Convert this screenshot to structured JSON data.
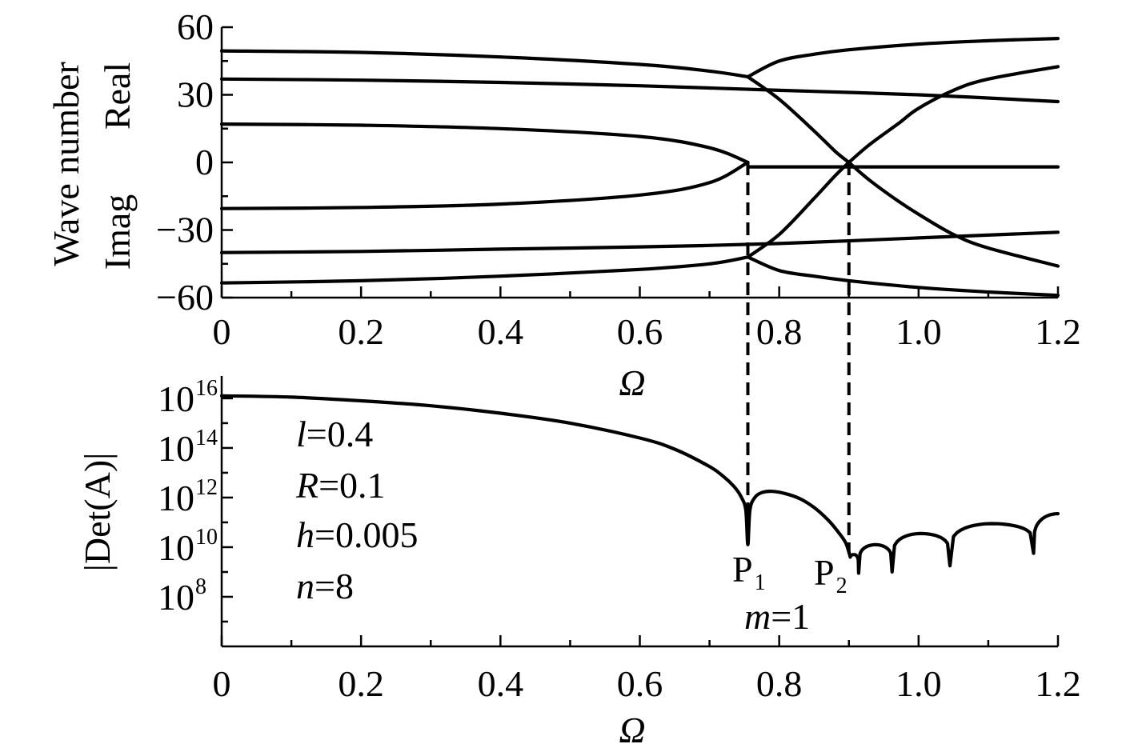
{
  "chart_data": [
    {
      "type": "line",
      "xlabel": "Ω",
      "ylabel": "Wave number",
      "ylabel_upper": "Real",
      "ylabel_lower": "Imag",
      "xlim": [
        0,
        1.2
      ],
      "ylim": [
        -60,
        60
      ],
      "x_ticks": [
        0,
        0.2,
        0.4,
        0.6,
        0.8,
        1.0,
        1.2
      ],
      "x_tick_labels": [
        "0",
        "0.2",
        "0.4",
        "0.6",
        "0.8",
        "1.0",
        "1.2"
      ],
      "y_ticks": [
        60,
        30,
        0,
        -30,
        -60
      ],
      "y_tick_labels": [
        "60",
        "30",
        "0",
        "−30",
        "−60"
      ],
      "series": [
        {
          "x": [
            0,
            0.2,
            0.4,
            0.6,
            0.7,
            0.755
          ],
          "y": [
            49.5,
            48.8,
            46.8,
            43.5,
            40.5,
            38
          ]
        },
        {
          "x": [
            0.755,
            0.8,
            0.85,
            0.88,
            0.9
          ],
          "y": [
            38,
            28,
            14,
            5,
            0
          ]
        },
        {
          "x": [
            0.755,
            0.8,
            0.85,
            0.9,
            1.0,
            1.1,
            1.2
          ],
          "y": [
            38,
            45,
            48,
            50,
            52.5,
            54,
            55
          ]
        },
        {
          "x": [
            0,
            0.2,
            0.4,
            0.6,
            0.8,
            1.0,
            1.2
          ],
          "y": [
            37,
            36.5,
            35.5,
            34,
            32,
            30,
            27
          ]
        },
        {
          "x": [
            0,
            0.2,
            0.4,
            0.6,
            0.7,
            0.755
          ],
          "y": [
            17,
            16.5,
            15,
            11.5,
            6.5,
            0
          ]
        },
        {
          "x": [
            0,
            0.2,
            0.4,
            0.6,
            0.7,
            0.755
          ],
          "y": [
            -20.5,
            -20,
            -18.5,
            -14.5,
            -9,
            0
          ]
        },
        {
          "x": [
            0.755,
            1.2
          ],
          "y": [
            -2,
            -2
          ]
        },
        {
          "x": [
            0.9,
            0.93,
            0.97,
            1.0,
            1.05,
            1.1,
            1.2
          ],
          "y": [
            0,
            8,
            17,
            24,
            32,
            37,
            42.5
          ]
        },
        {
          "x": [
            0.9,
            0.93,
            0.97,
            1.0,
            1.05,
            1.1,
            1.2
          ],
          "y": [
            0,
            -8,
            -17,
            -23,
            -32,
            -38,
            -46
          ]
        },
        {
          "x": [
            0,
            0.2,
            0.4,
            0.6,
            0.8,
            1.0,
            1.2
          ],
          "y": [
            -40,
            -39.5,
            -38.5,
            -37.5,
            -36,
            -33.5,
            -31
          ]
        },
        {
          "x": [
            0.755,
            0.8,
            0.85,
            0.88,
            0.9
          ],
          "y": [
            -42,
            -32,
            -16,
            -6,
            0
          ]
        },
        {
          "x": [
            0,
            0.2,
            0.4,
            0.6,
            0.7,
            0.755
          ],
          "y": [
            -53.5,
            -52.5,
            -50.5,
            -47.5,
            -45,
            -42
          ]
        },
        {
          "x": [
            0.755,
            0.8,
            0.85,
            0.9,
            1.0,
            1.1,
            1.2
          ],
          "y": [
            -42,
            -48,
            -50.5,
            -52.5,
            -55.5,
            -57.5,
            -59
          ]
        }
      ],
      "vertical_dashed_markers": [
        0.755,
        0.9
      ]
    },
    {
      "type": "line",
      "xlabel": "Ω",
      "ylabel": "|Det(A)|",
      "log_scale_y": true,
      "xlim": [
        0,
        1.2
      ],
      "ylim_log10": [
        6,
        16.9
      ],
      "x_ticks": [
        0,
        0.2,
        0.4,
        0.6,
        0.8,
        1.0,
        1.2
      ],
      "x_tick_labels": [
        "0",
        "0.2",
        "0.4",
        "0.6",
        "0.8",
        "1.0",
        "1.2"
      ],
      "y_tick_base": "10",
      "y_tick_exponents": [
        "16",
        "14",
        "12",
        "10",
        "8"
      ],
      "series": [
        {
          "x": [
            0,
            0.1,
            0.2,
            0.3,
            0.4,
            0.5,
            0.6,
            0.65,
            0.7,
            0.72,
            0.735,
            0.745,
            0.752,
            0.755,
            0.758,
            0.765,
            0.775,
            0.79,
            0.81,
            0.83,
            0.85,
            0.87,
            0.885,
            0.895,
            0.9
          ],
          "log10_y": [
            16.1,
            16.05,
            15.9,
            15.7,
            15.4,
            15.0,
            14.4,
            13.95,
            13.25,
            12.85,
            12.45,
            12.05,
            11.5,
            10.1,
            11.5,
            12.0,
            12.2,
            12.25,
            12.15,
            11.95,
            11.6,
            11.1,
            10.6,
            10.2,
            9.8
          ]
        }
      ],
      "dips": [
        0.902,
        0.914,
        0.962,
        1.045,
        1.165
      ],
      "dip_depth_log10": [
        9.6,
        8.95,
        9.0,
        9.25,
        9.75
      ],
      "arch_peak_log10": [
        9.7,
        10.1,
        10.55,
        10.95,
        11.0
      ],
      "end_log10": 11.35,
      "vertical_dashed_markers": [
        0.755,
        0.9
      ],
      "annotations": [
        {
          "var": "l",
          "text": "=0.4"
        },
        {
          "var": "R",
          "text": "=0.1"
        },
        {
          "var": "h",
          "text": "=0.005"
        },
        {
          "var": "n",
          "text": "=8"
        }
      ],
      "points": [
        {
          "label": "P",
          "sub": "1"
        },
        {
          "label": "P",
          "sub": "2"
        }
      ],
      "mode_label": {
        "var": "m",
        "text": "=1"
      }
    }
  ]
}
